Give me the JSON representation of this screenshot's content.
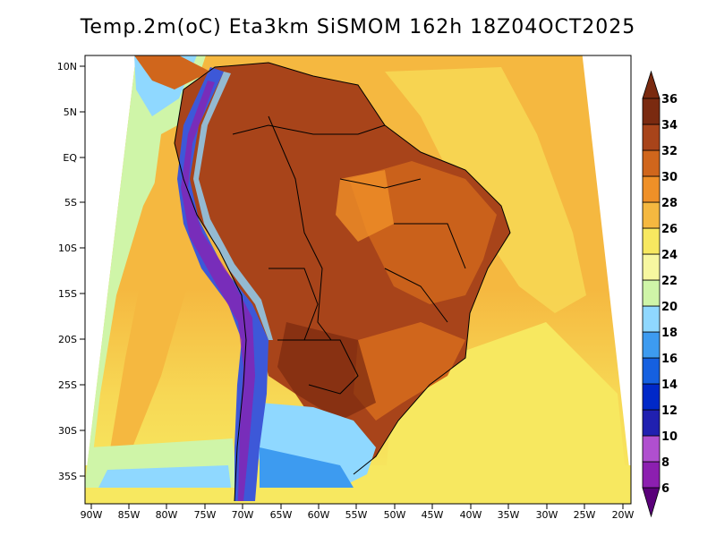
{
  "title": "Temp.2m(oC) Eta3km SiSMOM 162h 18Z04OCT2025",
  "lat_labels": [
    "10N",
    "5N",
    "EQ",
    "5S",
    "10S",
    "15S",
    "20S",
    "25S",
    "30S",
    "35S"
  ],
  "lon_labels": [
    "90W",
    "85W",
    "80W",
    "75W",
    "70W",
    "65W",
    "60W",
    "55W",
    "50W",
    "45W",
    "40W",
    "35W",
    "30W",
    "25W",
    "20W"
  ],
  "colorbar": {
    "labels": [
      "6",
      "8",
      "10",
      "12",
      "14",
      "16",
      "18",
      "20",
      "22",
      "24",
      "26",
      "28",
      "30",
      "32",
      "34",
      "36"
    ],
    "colors": [
      "#5a007a",
      "#8c1fb0",
      "#b04fcf",
      "#2020b0",
      "#0028c8",
      "#1560e0",
      "#3d9bf0",
      "#8fd8ff",
      "#cff5a8",
      "#f7f7a0",
      "#f7e860",
      "#f5b840",
      "#ef9028",
      "#d0661c",
      "#a8441a",
      "#7a2a10"
    ]
  },
  "colors": {
    "ocean_warm": "#f5b840",
    "ocean_mid": "#f7e860",
    "land_hot": "#a8441a",
    "land_warm": "#d0661c",
    "andes": "#3d58d8",
    "south_cool": "#8fd8ff"
  }
}
